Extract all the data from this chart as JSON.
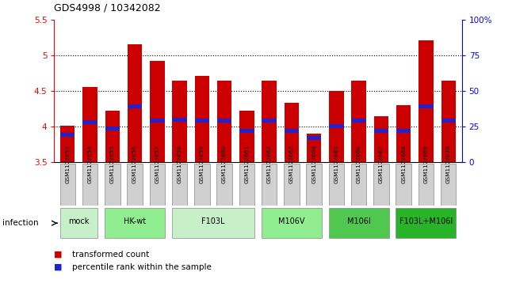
{
  "title": "GDS4998 / 10342082",
  "samples": [
    "GSM1172653",
    "GSM1172654",
    "GSM1172655",
    "GSM1172656",
    "GSM1172657",
    "GSM1172658",
    "GSM1172659",
    "GSM1172660",
    "GSM1172661",
    "GSM1172662",
    "GSM1172663",
    "GSM1172664",
    "GSM1172665",
    "GSM1172666",
    "GSM1172667",
    "GSM1172668",
    "GSM1172669",
    "GSM1172670"
  ],
  "bar_tops": [
    4.01,
    4.56,
    4.22,
    5.16,
    4.93,
    4.65,
    4.71,
    4.65,
    4.22,
    4.65,
    4.34,
    3.9,
    4.5,
    4.65,
    4.15,
    4.3,
    5.22,
    4.65
  ],
  "bar_bottom": 3.5,
  "blue_marks": [
    3.88,
    4.06,
    3.97,
    4.29,
    4.09,
    4.1,
    4.09,
    4.09,
    3.94,
    4.09,
    3.94,
    3.84,
    4.01,
    4.09,
    3.94,
    3.94,
    4.29,
    4.09
  ],
  "groups": [
    {
      "label": "mock",
      "color": "#c8f0c8",
      "start": 0,
      "end": 1
    },
    {
      "label": "HK-wt",
      "color": "#90ee90",
      "start": 2,
      "end": 4
    },
    {
      "label": "F103L",
      "color": "#c8f0c8",
      "start": 5,
      "end": 8
    },
    {
      "label": "M106V",
      "color": "#90ee90",
      "start": 9,
      "end": 11
    },
    {
      "label": "M106I",
      "color": "#50c850",
      "start": 12,
      "end": 14
    },
    {
      "label": "F103L+M106I",
      "color": "#28b428",
      "start": 15,
      "end": 17
    }
  ],
  "ylim_left": [
    3.5,
    5.5
  ],
  "ylim_right": [
    0,
    100
  ],
  "yticks_left": [
    3.5,
    4.0,
    4.5,
    5.0,
    5.5
  ],
  "ytick_labels_left": [
    "3.5",
    "4",
    "4.5",
    "5",
    "5.5"
  ],
  "yticks_right": [
    0,
    25,
    50,
    75,
    100
  ],
  "ytick_labels_right": [
    "0",
    "25",
    "50",
    "75",
    "100%"
  ],
  "bar_color": "#cc0000",
  "blue_color": "#2222cc",
  "bar_width": 0.65,
  "infection_label": "infection",
  "legend_transformed": "transformed count",
  "legend_percentile": "percentile rank within the sample",
  "grid_dotted_at": [
    4.0,
    4.5,
    5.0
  ],
  "sample_box_color": "#d0d0d0",
  "sample_box_edge": "#888888"
}
